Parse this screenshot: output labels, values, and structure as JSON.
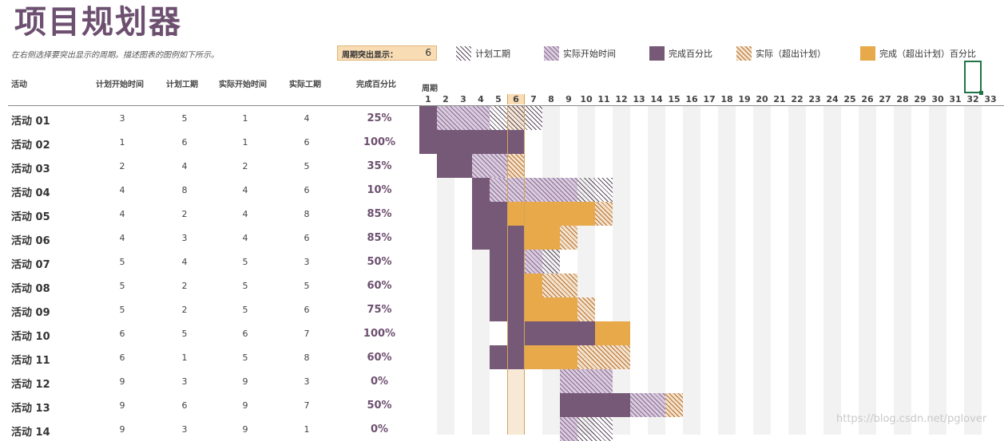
{
  "title": "项目规划器",
  "description": "在右侧选择要突出显示的周期。描述图表的图例如下所示。",
  "highlight": {
    "label": "周期突出显示：",
    "value": "6"
  },
  "legend": [
    {
      "label": "计划工期",
      "style": "hatch-plan"
    },
    {
      "label": "实际开始时间",
      "style": "hatch-actual"
    },
    {
      "label": "完成百分比",
      "style": "solid-done"
    },
    {
      "label": "实际（超出计划）",
      "style": "hatch-over"
    },
    {
      "label": "完成（超出计划）百分比",
      "style": "solid-over"
    }
  ],
  "columns": {
    "activity": "活动",
    "plan_start": "计划开始时间",
    "plan_duration": "计划工期",
    "actual_start": "实际开始时间",
    "actual_duration": "实际工期",
    "percent": "完成百分比",
    "period": "周期"
  },
  "periods": [
    "1",
    "2",
    "3",
    "4",
    "5",
    "6",
    "7",
    "8",
    "9",
    "10",
    "11",
    "12",
    "13",
    "14",
    "15",
    "16",
    "17",
    "18",
    "19",
    "20",
    "21",
    "22",
    "23",
    "24",
    "25",
    "26",
    "27",
    "28",
    "29",
    "30",
    "31",
    "32",
    "33"
  ],
  "highlight_period": 6,
  "colors": {
    "title": "#6d5070",
    "done": "#765877",
    "over": "#e8a94b",
    "highlight": "#f8dcb4",
    "selection": "#217346"
  },
  "activities": [
    {
      "name": "活动 01",
      "plan_start": "3",
      "plan_duration": "5",
      "actual_start": "1",
      "actual_duration": "4",
      "percent": "25%"
    },
    {
      "name": "活动 02",
      "plan_start": "1",
      "plan_duration": "6",
      "actual_start": "1",
      "actual_duration": "6",
      "percent": "100%"
    },
    {
      "name": "活动 03",
      "plan_start": "2",
      "plan_duration": "4",
      "actual_start": "2",
      "actual_duration": "5",
      "percent": "35%"
    },
    {
      "name": "活动 04",
      "plan_start": "4",
      "plan_duration": "8",
      "actual_start": "4",
      "actual_duration": "6",
      "percent": "10%"
    },
    {
      "name": "活动 05",
      "plan_start": "4",
      "plan_duration": "2",
      "actual_start": "4",
      "actual_duration": "8",
      "percent": "85%"
    },
    {
      "name": "活动 06",
      "plan_start": "4",
      "plan_duration": "3",
      "actual_start": "4",
      "actual_duration": "6",
      "percent": "85%"
    },
    {
      "name": "活动 07",
      "plan_start": "5",
      "plan_duration": "4",
      "actual_start": "5",
      "actual_duration": "3",
      "percent": "50%"
    },
    {
      "name": "活动 08",
      "plan_start": "5",
      "plan_duration": "2",
      "actual_start": "5",
      "actual_duration": "5",
      "percent": "60%"
    },
    {
      "name": "活动 09",
      "plan_start": "5",
      "plan_duration": "2",
      "actual_start": "5",
      "actual_duration": "6",
      "percent": "75%"
    },
    {
      "name": "活动 10",
      "plan_start": "6",
      "plan_duration": "5",
      "actual_start": "6",
      "actual_duration": "7",
      "percent": "100%"
    },
    {
      "name": "活动 11",
      "plan_start": "6",
      "plan_duration": "1",
      "actual_start": "5",
      "actual_duration": "8",
      "percent": "60%"
    },
    {
      "name": "活动 12",
      "plan_start": "9",
      "plan_duration": "3",
      "actual_start": "9",
      "actual_duration": "3",
      "percent": "0%"
    },
    {
      "name": "活动 13",
      "plan_start": "9",
      "plan_duration": "6",
      "actual_start": "9",
      "actual_duration": "7",
      "percent": "50%"
    },
    {
      "name": "活动 14",
      "plan_start": "9",
      "plan_duration": "3",
      "actual_start": "9",
      "actual_duration": "1",
      "percent": "0%"
    }
  ],
  "watermark": "https://blog.csdn.net/pglover"
}
